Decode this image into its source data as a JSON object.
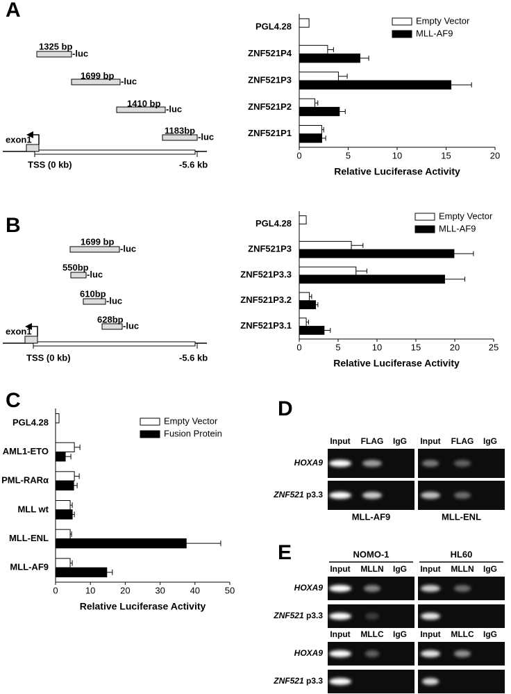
{
  "panels": [
    "A",
    "B",
    "C",
    "D",
    "E"
  ],
  "chart_data": [
    {
      "type": "bar",
      "orientation": "horizontal",
      "categories": [
        "PGL4.28",
        "ZNF521P4",
        "ZNF521P3",
        "ZNF521P2",
        "ZNF521P1"
      ],
      "series": [
        {
          "name": "Empty Vector",
          "color": "#ffffff",
          "values": [
            1.0,
            2.9,
            4.0,
            1.6,
            2.3
          ],
          "errors": [
            null,
            0.6,
            0.9,
            0.3,
            0.2
          ]
        },
        {
          "name": "MLL-AF9",
          "color": "#000000",
          "values": [
            null,
            6.2,
            15.5,
            4.1,
            2.3
          ],
          "errors": [
            null,
            0.9,
            2.1,
            0.6,
            0.4
          ]
        }
      ],
      "xlim": [
        0,
        20
      ],
      "xticks": [
        0,
        5,
        10,
        15,
        20
      ],
      "xlabel": "Relative Luciferase Activity",
      "legend": "upper right"
    },
    {
      "type": "bar",
      "orientation": "horizontal",
      "categories": [
        "PGL4.28",
        "ZNF521P3",
        "ZNF521P3.3",
        "ZNF521P3.2",
        "ZNF521P3.1"
      ],
      "series": [
        {
          "name": "Empty Vector",
          "color": "#ffffff",
          "values": [
            0.9,
            6.7,
            7.3,
            1.3,
            0.9
          ],
          "errors": [
            null,
            1.5,
            1.4,
            0.3,
            0.3
          ]
        },
        {
          "name": "MLL-AF9",
          "color": "#000000",
          "values": [
            null,
            19.9,
            18.7,
            2.1,
            3.2
          ],
          "errors": [
            null,
            2.5,
            2.6,
            0.3,
            0.8
          ]
        }
      ],
      "xlim": [
        0,
        25
      ],
      "xticks": [
        0,
        5,
        10,
        15,
        20,
        25
      ],
      "xlabel": "Relative Luciferase Activity",
      "legend": "upper right"
    },
    {
      "type": "bar",
      "orientation": "horizontal",
      "categories": [
        "PGL4.28",
        "AML1-ETO",
        "PML-RARα",
        "MLL wt",
        "MLL-ENL",
        "MLL-AF9"
      ],
      "series": [
        {
          "name": "Empty Vector",
          "color": "#ffffff",
          "values": [
            1.0,
            5.4,
            5.4,
            4.2,
            4.2,
            4.2
          ],
          "errors": [
            null,
            1.6,
            1.4,
            0.6,
            0.4,
            0.6
          ]
        },
        {
          "name": "Fusion Protein",
          "color": "#000000",
          "values": [
            null,
            2.8,
            5.2,
            4.8,
            37.5,
            14.7
          ],
          "errors": [
            null,
            1.6,
            1.0,
            0.6,
            9.9,
            1.6
          ]
        }
      ],
      "xlim": [
        0,
        50
      ],
      "xticks": [
        0,
        10,
        20,
        30,
        40,
        50
      ],
      "xlabel": "Relative Luciferase Activity",
      "legend": "upper right"
    }
  ],
  "diagrams": [
    {
      "fragments": [
        {
          "size": "1325 bp",
          "suffix": "-luc"
        },
        {
          "size": "1699 bp",
          "suffix": "-luc"
        },
        {
          "size": "1410 bp",
          "suffix": "-luc"
        },
        {
          "size": "1183bp",
          "suffix": "-luc"
        }
      ],
      "exon": "exon1",
      "tss": "TSS (0 kb)",
      "end": "-5.6 kb"
    },
    {
      "fragments": [
        {
          "size": "1699 bp",
          "suffix": "-luc"
        },
        {
          "size": "550bp",
          "suffix": "-luc"
        },
        {
          "size": "610bp",
          "suffix": "-luc"
        },
        {
          "size": "628bp",
          "suffix": "-luc"
        }
      ],
      "exon": "exon1",
      "tss": "TSS (0 kb)",
      "end": "-5.6 kb"
    }
  ],
  "gels": {
    "D": {
      "lanes": [
        "Input",
        "FLAG",
        "IgG"
      ],
      "rows": [
        {
          "gene": "HOXA9"
        },
        {
          "gene": "ZNF521",
          "suffix": "p3.3"
        }
      ],
      "samples": [
        "MLL-AF9",
        "MLL-ENL"
      ]
    },
    "E": {
      "cells": [
        "NOMO-1",
        "HL60"
      ],
      "blocks": [
        {
          "lanes": [
            "Input",
            "MLLN",
            "IgG"
          ]
        },
        {
          "lanes": [
            "Input",
            "MLLC",
            "IgG"
          ]
        }
      ],
      "rows": [
        {
          "gene": "HOXA9"
        },
        {
          "gene": "ZNF521",
          "suffix": "p3.3"
        }
      ]
    }
  }
}
